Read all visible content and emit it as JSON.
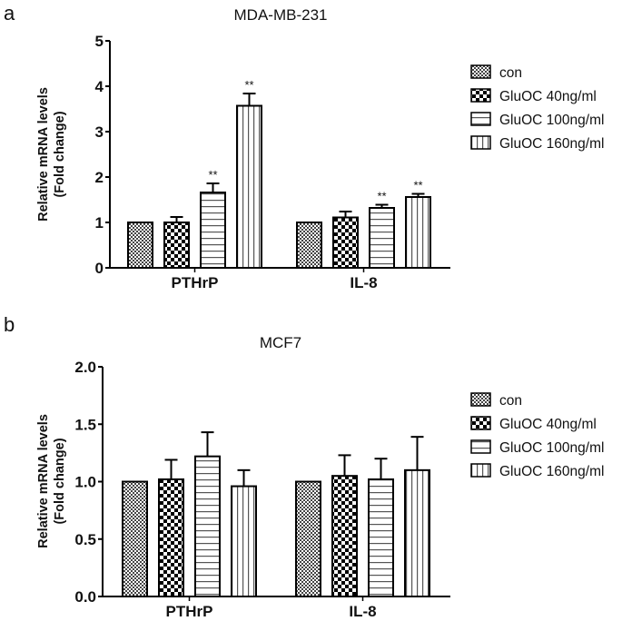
{
  "chart_data": [
    {
      "panel": "a",
      "type": "bar",
      "title": "MDA-MB-231",
      "ylabel": [
        "Relative mRNA levels",
        "(Fold change)"
      ],
      "xlabel": "",
      "ylim": [
        0,
        5
      ],
      "yticks": [
        0,
        1,
        2,
        3,
        4,
        5
      ],
      "ytick_labels": [
        "0",
        "1",
        "2",
        "3",
        "4",
        "5"
      ],
      "categories": [
        "PTHrP",
        "IL-8"
      ],
      "legend_position": "right",
      "series": [
        {
          "name": "con",
          "pattern": "fine-check",
          "values": [
            1.0,
            1.0
          ],
          "errors": [
            0,
            0
          ],
          "annotations": [
            "",
            ""
          ]
        },
        {
          "name": "GluOC 40ng/ml",
          "pattern": "coarse-check",
          "values": [
            1.0,
            1.11
          ],
          "errors": [
            0.12,
            0.13
          ],
          "annotations": [
            "",
            ""
          ]
        },
        {
          "name": "GluOC 100ng/ml",
          "pattern": "horizontal-lines",
          "values": [
            1.66,
            1.32
          ],
          "errors": [
            0.2,
            0.07
          ],
          "annotations": [
            "**",
            "**"
          ]
        },
        {
          "name": "GluOC 160ng/ml",
          "pattern": "vertical-lines",
          "values": [
            3.57,
            1.56
          ],
          "errors": [
            0.27,
            0.07
          ],
          "annotations": [
            "**",
            "**"
          ]
        }
      ]
    },
    {
      "panel": "b",
      "type": "bar",
      "title": "MCF7",
      "ylabel": [
        "Relative mRNA levels",
        "(Fold change)"
      ],
      "xlabel": "",
      "ylim": [
        0,
        2.0
      ],
      "yticks": [
        0,
        0.5,
        1.0,
        1.5,
        2.0
      ],
      "ytick_labels": [
        "0.0",
        "0.5",
        "1.0",
        "1.5",
        "2.0"
      ],
      "categories": [
        "PTHrP",
        "IL-8"
      ],
      "legend_position": "right",
      "series": [
        {
          "name": "con",
          "pattern": "fine-check",
          "values": [
            1.0,
            1.0
          ],
          "errors": [
            0,
            0
          ],
          "annotations": [
            "",
            ""
          ]
        },
        {
          "name": "GluOC 40ng/ml",
          "pattern": "coarse-check",
          "values": [
            1.02,
            1.05
          ],
          "errors": [
            0.17,
            0.18
          ],
          "annotations": [
            "",
            ""
          ]
        },
        {
          "name": "GluOC 100ng/ml",
          "pattern": "horizontal-lines",
          "values": [
            1.22,
            1.02
          ],
          "errors": [
            0.21,
            0.18
          ],
          "annotations": [
            "",
            ""
          ]
        },
        {
          "name": "GluOC 160ng/ml",
          "pattern": "vertical-lines",
          "values": [
            0.96,
            1.1
          ],
          "errors": [
            0.14,
            0.29
          ],
          "annotations": [
            "",
            ""
          ]
        }
      ]
    }
  ]
}
